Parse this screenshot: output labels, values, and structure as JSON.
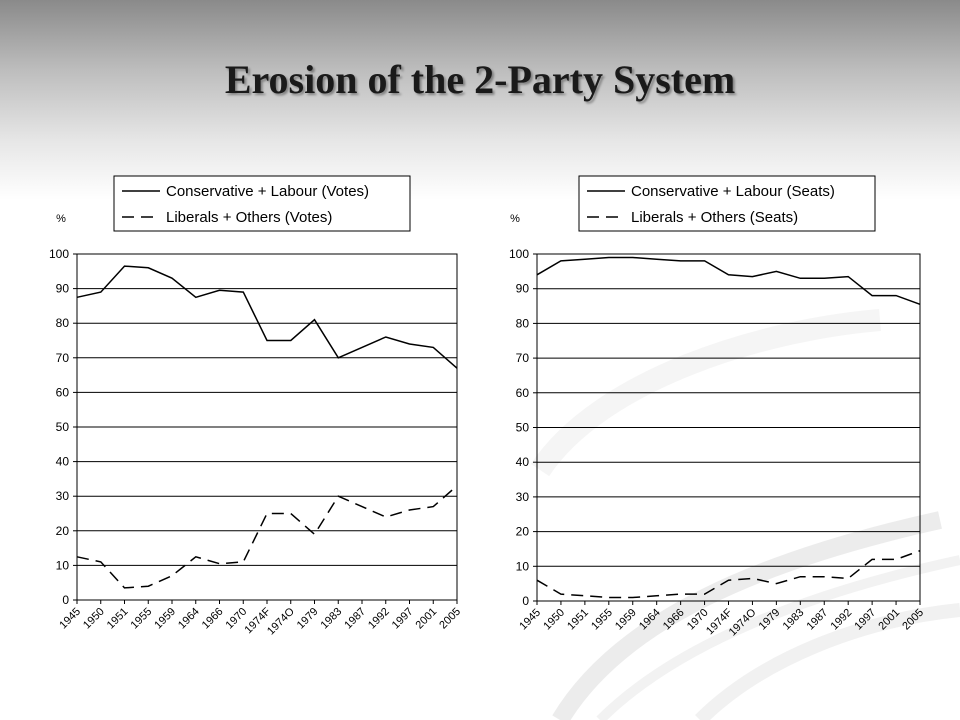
{
  "slide": {
    "title": "Erosion of the 2-Party System"
  },
  "chart_data": [
    {
      "type": "line",
      "ylabel": "%",
      "ylim": [
        0,
        100
      ],
      "yticks": [
        0,
        10,
        20,
        30,
        40,
        50,
        60,
        70,
        80,
        90,
        100
      ],
      "grid": "horizontal",
      "legend": "top",
      "categories": [
        "1945",
        "1950",
        "1951",
        "1955",
        "1959",
        "1964",
        "1966",
        "1970",
        "1974F",
        "1974O",
        "1979",
        "1983",
        "1987",
        "1992",
        "1997",
        "2001",
        "2005"
      ],
      "series": [
        {
          "name": "Conservative + Labour (Votes)",
          "style": "solid",
          "values": [
            87.5,
            89,
            96.5,
            96,
            93,
            87.5,
            89.5,
            89,
            75,
            75,
            81,
            70,
            73,
            76,
            74,
            73,
            67
          ]
        },
        {
          "name": "Liberals + Others (Votes)",
          "style": "dashed",
          "values": [
            12.5,
            11,
            3.5,
            4,
            7,
            12.5,
            10.5,
            11,
            25,
            25,
            19,
            30,
            27,
            24,
            26,
            27,
            33
          ]
        }
      ]
    },
    {
      "type": "line",
      "ylabel": "%",
      "ylim": [
        0,
        100
      ],
      "yticks": [
        0,
        10,
        20,
        30,
        40,
        50,
        60,
        70,
        80,
        90,
        100
      ],
      "grid": "horizontal",
      "legend": "top",
      "categories": [
        "1945",
        "1950",
        "1951",
        "1955",
        "1959",
        "1964",
        "1966",
        "1970",
        "1974F",
        "1974O",
        "1979",
        "1983",
        "1987",
        "1992",
        "1997",
        "2001",
        "2005"
      ],
      "series": [
        {
          "name": "Conservative + Labour (Seats)",
          "style": "solid",
          "values": [
            94,
            98,
            98.5,
            99,
            99,
            98.5,
            98,
            98,
            94,
            93.5,
            95,
            93,
            93,
            93.5,
            88,
            88,
            85.5
          ]
        },
        {
          "name": "Liberals + Others (Seats)",
          "style": "dashed",
          "values": [
            6,
            2,
            1.5,
            1,
            1,
            1.5,
            2,
            2,
            6,
            6.5,
            5,
            7,
            7,
            6.5,
            12,
            12,
            14.5
          ]
        }
      ]
    }
  ]
}
